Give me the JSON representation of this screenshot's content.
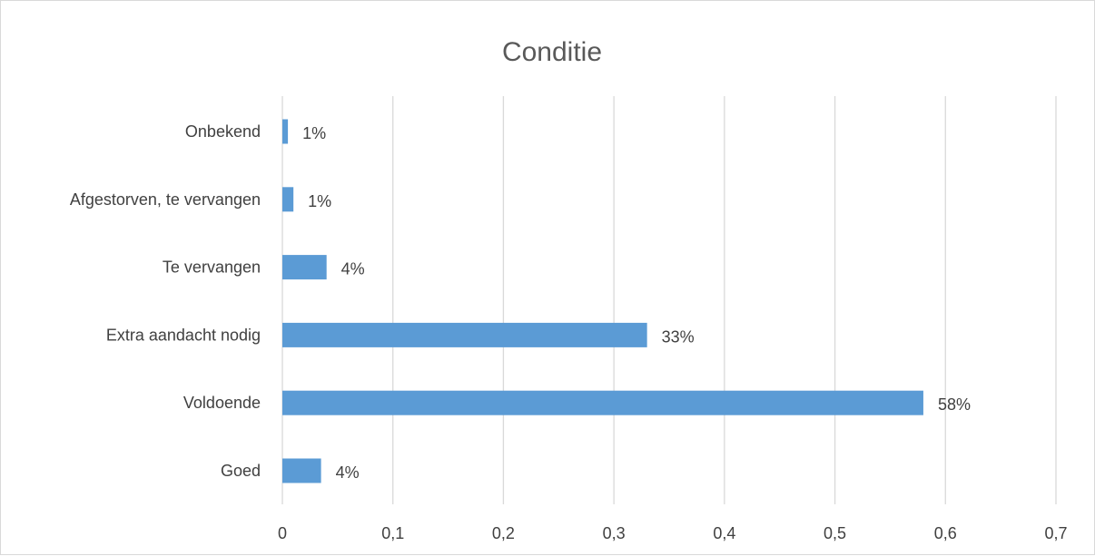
{
  "chart_data": {
    "type": "bar",
    "orientation": "horizontal",
    "title": "Conditie",
    "categories": [
      "Onbekend",
      "Afgestorven,  te vervangen",
      "Te vervangen",
      "Extra aandacht nodig",
      "Voldoende",
      "Goed"
    ],
    "values": [
      0.005,
      0.01,
      0.04,
      0.33,
      0.58,
      0.035
    ],
    "data_labels": [
      "1%",
      "1%",
      "4%",
      "33%",
      "58%",
      "4%"
    ],
    "xlim": [
      0,
      0.7
    ],
    "x_ticks": [
      0,
      0.1,
      0.2,
      0.3,
      0.4,
      0.5,
      0.6,
      0.7
    ],
    "x_tick_labels": [
      "0",
      "0,1",
      "0,2",
      "0,3",
      "0,4",
      "0,5",
      "0,6",
      "0,7"
    ],
    "xlabel": "",
    "ylabel": "",
    "grid": "vertical",
    "legend": "none",
    "bar_color": "#5b9bd5",
    "grid_color": "#d9d9d9"
  }
}
